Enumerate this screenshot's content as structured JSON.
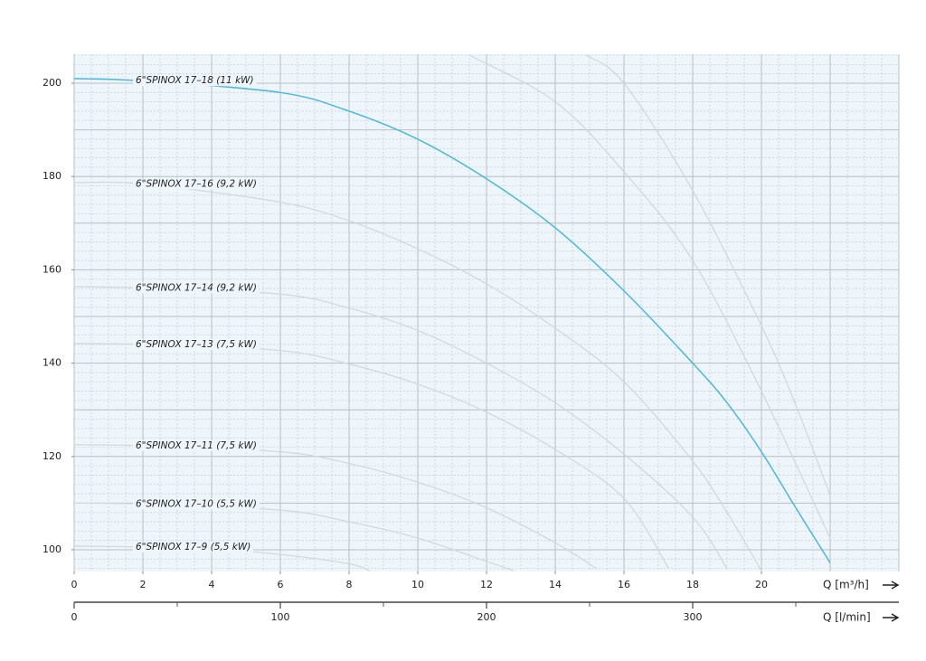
{
  "chart_data": {
    "type": "line",
    "series": [
      {
        "color": "#d4d6d8",
        "x": [
          11.5,
          14,
          16,
          18,
          20,
          22
        ],
        "values": [
          206,
          196,
          181,
          162,
          134,
          102.5
        ]
      },
      {
        "color": "#d4d6d8",
        "x": [
          14.9,
          16,
          18,
          20,
          21,
          22
        ],
        "values": [
          206,
          200,
          177,
          148,
          131,
          111.6
        ]
      },
      {
        "name": "6\"SPINOX 17–16 (9,2 kW)",
        "color": "#d4d6d8",
        "x": [
          0,
          2,
          6,
          8,
          10,
          12,
          14,
          16,
          18,
          19,
          20
        ],
        "values": [
          178.7,
          178.4,
          174.5,
          170.5,
          164.5,
          157,
          147.5,
          136,
          119,
          108,
          95.5
        ]
      },
      {
        "name": "6\"SPINOX 17–14 (9,2 kW)",
        "color": "#d4d6d8",
        "x": [
          0,
          2,
          6,
          8,
          10,
          12,
          14,
          16,
          18,
          19
        ],
        "values": [
          156.4,
          156.1,
          154.8,
          151.8,
          147,
          140,
          131.5,
          120.5,
          107,
          96
        ]
      },
      {
        "name": "6\"SPINOX 17–13 (7,5 kW)",
        "color": "#d4d6d8",
        "x": [
          0,
          2,
          6,
          8,
          10,
          12,
          14,
          16,
          17.3
        ],
        "values": [
          144.2,
          144,
          142.7,
          139.8,
          135.5,
          129.5,
          121.5,
          111,
          96
        ]
      },
      {
        "name": "6\"SPINOX 17–11 (7,5 kW)",
        "color": "#d4d6d8",
        "x": [
          0,
          2,
          6,
          8,
          10,
          12,
          14,
          15.2
        ],
        "values": [
          122.5,
          122.3,
          121,
          118.5,
          114.5,
          109,
          101.5,
          96
        ]
      },
      {
        "name": "6\"SPINOX 17–10 (5,5 kW)",
        "color": "#d4d6d8",
        "x": [
          0,
          2,
          6,
          8,
          10,
          12,
          12.8
        ],
        "values": [
          110,
          109.8,
          108.5,
          106,
          102.5,
          97.5,
          95.5
        ]
      },
      {
        "name": "6\"SPINOX 17–9 (5,5 kW)",
        "color": "#d4d6d8",
        "x": [
          0,
          2,
          4,
          6,
          8,
          8.6
        ],
        "values": [
          100.8,
          100.6,
          100.2,
          99,
          97,
          95.5
        ]
      },
      {
        "name": "6\"SPINOX 17–18 (11 kW)",
        "color": "#4ab8e0",
        "x": [
          0,
          2,
          6,
          8,
          10,
          12,
          14,
          16,
          18,
          19,
          20,
          21,
          22
        ],
        "values": [
          201,
          200.5,
          198,
          194,
          188,
          179.5,
          169,
          155.5,
          140,
          131.5,
          121,
          109,
          97.2
        ]
      }
    ],
    "xlim": [
      0,
      24
    ],
    "xticks": [
      0,
      2,
      4,
      6,
      8,
      10,
      12,
      14,
      16,
      18,
      20
    ],
    "ylim": [
      95.35,
      206.2
    ],
    "yticks": [
      100,
      120,
      140,
      160,
      180,
      200
    ],
    "xlabel": "Q [m³/h]",
    "x2lim": [
      0,
      400
    ],
    "x2ticks": [
      0,
      100,
      200,
      300
    ],
    "x2minorticks": [
      50,
      150,
      250,
      350
    ],
    "x2label": "Q [l/min]",
    "grid": true
  }
}
